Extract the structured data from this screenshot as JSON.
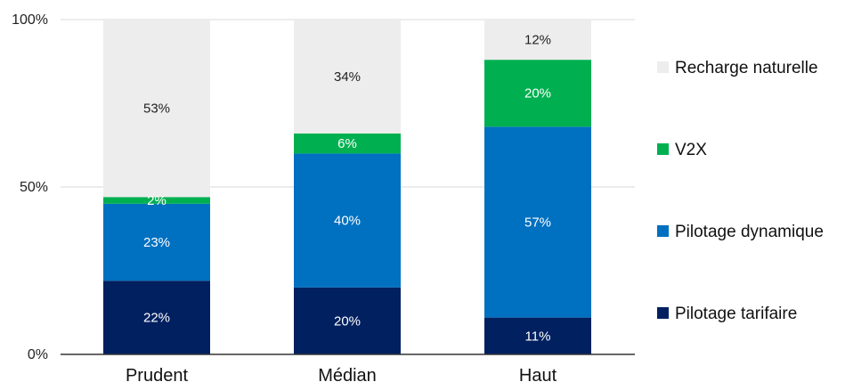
{
  "chart_data": {
    "type": "bar",
    "stacked": true,
    "categories": [
      "Prudent",
      "Médian",
      "Haut"
    ],
    "series": [
      {
        "name": "Pilotage tarifaire",
        "values": [
          22,
          20,
          11
        ],
        "labels": [
          "22%",
          "20%",
          "11%"
        ],
        "color": "#002060",
        "label_color": "#ffffff"
      },
      {
        "name": "Pilotage dynamique",
        "values": [
          23,
          40,
          57
        ],
        "labels": [
          "23%",
          "40%",
          "57%"
        ],
        "color": "#0070c0",
        "label_color": "#ffffff"
      },
      {
        "name": "V2X",
        "values": [
          2,
          6,
          20
        ],
        "labels": [
          "2%",
          "6%",
          "20%"
        ],
        "color": "#00b050",
        "label_color": "#ffffff"
      },
      {
        "name": "Recharge naturelle",
        "values": [
          53,
          34,
          12
        ],
        "labels": [
          "53%",
          "34%",
          "12%"
        ],
        "color": "#ededed",
        "label_color": "#222222"
      }
    ],
    "y_ticks": [
      {
        "value": 0,
        "label": "0%"
      },
      {
        "value": 50,
        "label": "50%"
      },
      {
        "value": 100,
        "label": "100%"
      }
    ],
    "ylim": [
      0,
      100
    ],
    "grid": true,
    "legend_position": "right",
    "legend_order": [
      "Recharge naturelle",
      "V2X",
      "Pilotage dynamique",
      "Pilotage tarifaire"
    ]
  }
}
